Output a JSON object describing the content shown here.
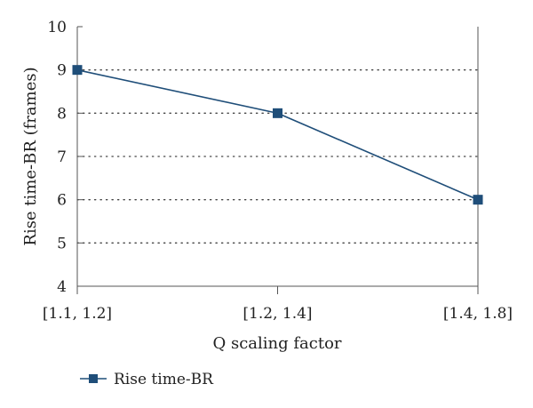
{
  "chart_data": {
    "type": "line",
    "title": "",
    "xlabel": "Q scaling factor",
    "ylabel": "Rise time-BR (frames)",
    "categories": [
      "[1.1, 1.2]",
      "[1.2, 1.4]",
      "[1.4, 1.8]"
    ],
    "series": [
      {
        "name": "Rise time-BR",
        "values": [
          9,
          8,
          6
        ],
        "color": "#1f4e79",
        "marker": "square"
      }
    ],
    "ylim": [
      4,
      10
    ],
    "yticks": [
      4,
      5,
      6,
      7,
      8,
      9,
      10
    ],
    "grid": "horizontal-dotted",
    "legend_position": "bottom-left"
  }
}
